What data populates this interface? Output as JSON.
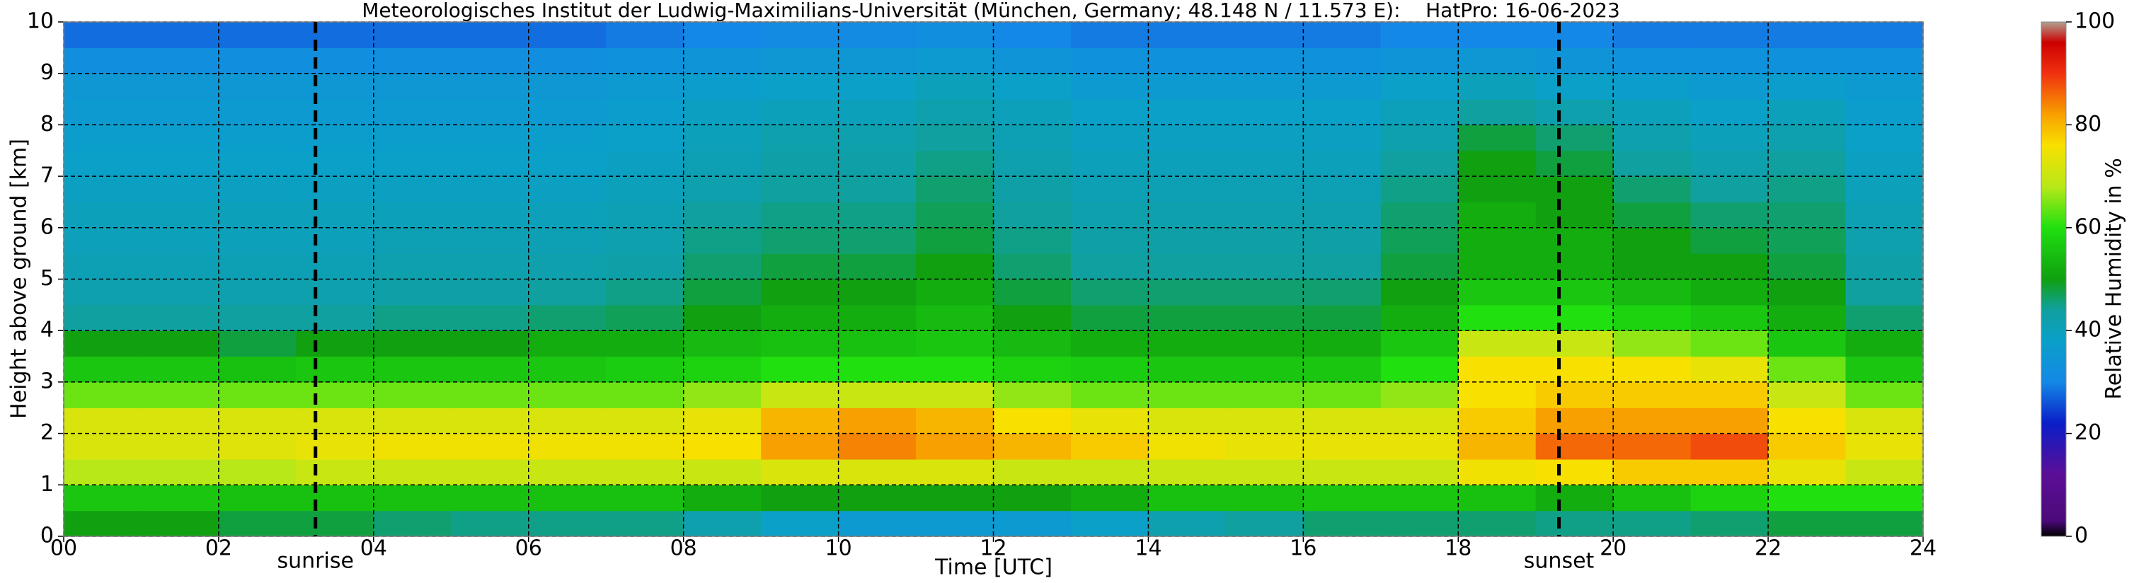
{
  "chart_data": {
    "type": "heatmap",
    "title": "Meteorologisches Institut der Ludwig-Maximilians-Universität (München, Germany; 48.148 N / 11.573 E):    HatPro: 16-06-2023",
    "xlabel": "Time [UTC]",
    "ylabel": "Height above ground [km]",
    "colorbar_label": "Relative Humidity in %",
    "xlim": [
      0,
      24
    ],
    "ylim": [
      0,
      10
    ],
    "clim": [
      0,
      100
    ],
    "xticks": [
      {
        "value": 0,
        "label": "00"
      },
      {
        "value": 2,
        "label": "02"
      },
      {
        "value": 4,
        "label": "04"
      },
      {
        "value": 6,
        "label": "06"
      },
      {
        "value": 8,
        "label": "08"
      },
      {
        "value": 10,
        "label": "10"
      },
      {
        "value": 12,
        "label": "12"
      },
      {
        "value": 14,
        "label": "14"
      },
      {
        "value": 16,
        "label": "16"
      },
      {
        "value": 18,
        "label": "18"
      },
      {
        "value": 20,
        "label": "20"
      },
      {
        "value": 22,
        "label": "22"
      },
      {
        "value": 24,
        "label": "24"
      }
    ],
    "yticks": [
      0,
      1,
      2,
      3,
      4,
      5,
      6,
      7,
      8,
      9,
      10
    ],
    "cticks": [
      0,
      20,
      40,
      60,
      80,
      100
    ],
    "grid": true,
    "annotations": [
      {
        "label": "sunrise",
        "x": 3.25
      },
      {
        "label": "sunset",
        "x": 19.3
      }
    ],
    "colormap": [
      [
        0,
        "#000000"
      ],
      [
        3,
        "#4b0a7a"
      ],
      [
        12,
        "#5c0e96"
      ],
      [
        22,
        "#0a1ec8"
      ],
      [
        30,
        "#1488e6"
      ],
      [
        38,
        "#0aa0c8"
      ],
      [
        44,
        "#10a0a0"
      ],
      [
        50,
        "#10a010"
      ],
      [
        60,
        "#20e010"
      ],
      [
        68,
        "#b8e818"
      ],
      [
        76,
        "#f8e000"
      ],
      [
        82,
        "#f8a000"
      ],
      [
        90,
        "#f03010"
      ],
      [
        96,
        "#cc0000"
      ],
      [
        100,
        "#b0a090"
      ]
    ],
    "x_bins": [
      0,
      1,
      2,
      3,
      4,
      5,
      6,
      7,
      8,
      9,
      10,
      11,
      12,
      13,
      14,
      15,
      16,
      17,
      18,
      19,
      20,
      21,
      22,
      23,
      24
    ],
    "y_bins": [
      0,
      0.5,
      1,
      1.5,
      2,
      2.5,
      3,
      3.5,
      4,
      4.5,
      5,
      5.5,
      6,
      6.5,
      7,
      7.5,
      8,
      8.5,
      9,
      9.5,
      10
    ],
    "values": [
      [
        50,
        50,
        48,
        48,
        46,
        45,
        45,
        45,
        42,
        38,
        36,
        36,
        36,
        38,
        42,
        44,
        46,
        46,
        46,
        45,
        45,
        46,
        48,
        48
      ],
      [
        56,
        56,
        55,
        55,
        55,
        55,
        55,
        55,
        52,
        50,
        50,
        50,
        50,
        52,
        55,
        55,
        56,
        56,
        55,
        52,
        55,
        58,
        60,
        60
      ],
      [
        68,
        68,
        68,
        70,
        70,
        70,
        70,
        70,
        70,
        72,
        72,
        72,
        70,
        70,
        70,
        70,
        70,
        70,
        75,
        76,
        78,
        78,
        74,
        70
      ],
      [
        72,
        72,
        73,
        74,
        75,
        75,
        75,
        75,
        76,
        82,
        84,
        82,
        80,
        78,
        75,
        74,
        74,
        74,
        80,
        86,
        86,
        88,
        78,
        74
      ],
      [
        72,
        72,
        72,
        72,
        72,
        72,
        72,
        72,
        74,
        80,
        82,
        80,
        76,
        74,
        72,
        72,
        72,
        72,
        78,
        82,
        82,
        82,
        76,
        72
      ],
      [
        64,
        64,
        64,
        64,
        64,
        64,
        64,
        64,
        66,
        70,
        70,
        70,
        66,
        64,
        64,
        64,
        64,
        66,
        76,
        78,
        78,
        78,
        70,
        64
      ],
      [
        56,
        56,
        55,
        56,
        56,
        56,
        56,
        57,
        58,
        60,
        60,
        60,
        58,
        57,
        56,
        56,
        56,
        60,
        76,
        76,
        76,
        74,
        64,
        56
      ],
      [
        50,
        50,
        48,
        50,
        50,
        50,
        52,
        52,
        54,
        55,
        55,
        56,
        54,
        52,
        52,
        52,
        52,
        56,
        70,
        70,
        66,
        64,
        56,
        52
      ],
      [
        44,
        44,
        44,
        44,
        45,
        45,
        46,
        47,
        50,
        52,
        52,
        54,
        50,
        48,
        48,
        48,
        48,
        52,
        60,
        60,
        58,
        56,
        52,
        46
      ],
      [
        42,
        42,
        42,
        42,
        43,
        43,
        44,
        45,
        48,
        50,
        50,
        52,
        48,
        46,
        46,
        46,
        46,
        50,
        56,
        56,
        54,
        52,
        50,
        44
      ],
      [
        41,
        41,
        41,
        41,
        42,
        42,
        42,
        43,
        46,
        48,
        48,
        50,
        46,
        44,
        44,
        44,
        44,
        48,
        52,
        52,
        50,
        50,
        48,
        43
      ],
      [
        40,
        40,
        40,
        40,
        41,
        41,
        41,
        42,
        45,
        46,
        46,
        48,
        45,
        43,
        43,
        43,
        43,
        47,
        52,
        52,
        50,
        48,
        47,
        42
      ],
      [
        40,
        40,
        40,
        40,
        40,
        40,
        40,
        41,
        44,
        45,
        45,
        47,
        44,
        42,
        42,
        42,
        42,
        46,
        52,
        50,
        48,
        46,
        46,
        41
      ],
      [
        39,
        39,
        39,
        39,
        39,
        39,
        39,
        40,
        42,
        44,
        44,
        46,
        43,
        41,
        41,
        41,
        41,
        45,
        50,
        50,
        46,
        44,
        45,
        40
      ],
      [
        38,
        38,
        38,
        38,
        38,
        38,
        38,
        39,
        41,
        43,
        43,
        45,
        42,
        40,
        40,
        40,
        40,
        44,
        50,
        48,
        44,
        42,
        44,
        39
      ],
      [
        37,
        37,
        37,
        37,
        37,
        37,
        37,
        38,
        40,
        42,
        42,
        44,
        41,
        39,
        39,
        39,
        39,
        42,
        48,
        46,
        42,
        40,
        42,
        38
      ],
      [
        36,
        36,
        36,
        36,
        36,
        36,
        36,
        37,
        39,
        40,
        40,
        42,
        40,
        38,
        38,
        38,
        38,
        40,
        44,
        42,
        40,
        38,
        40,
        37
      ],
      [
        35,
        35,
        35,
        35,
        35,
        35,
        35,
        36,
        37,
        38,
        38,
        40,
        38,
        36,
        36,
        36,
        36,
        38,
        40,
        38,
        37,
        36,
        37,
        36
      ],
      [
        32,
        32,
        32,
        32,
        32,
        32,
        32,
        33,
        34,
        35,
        35,
        36,
        34,
        33,
        33,
        33,
        33,
        34,
        35,
        34,
        33,
        33,
        33,
        33
      ],
      [
        28,
        28,
        28,
        28,
        28,
        28,
        28,
        29,
        30,
        31,
        31,
        32,
        30,
        29,
        29,
        29,
        29,
        30,
        30,
        30,
        29,
        29,
        29,
        29
      ]
    ]
  }
}
